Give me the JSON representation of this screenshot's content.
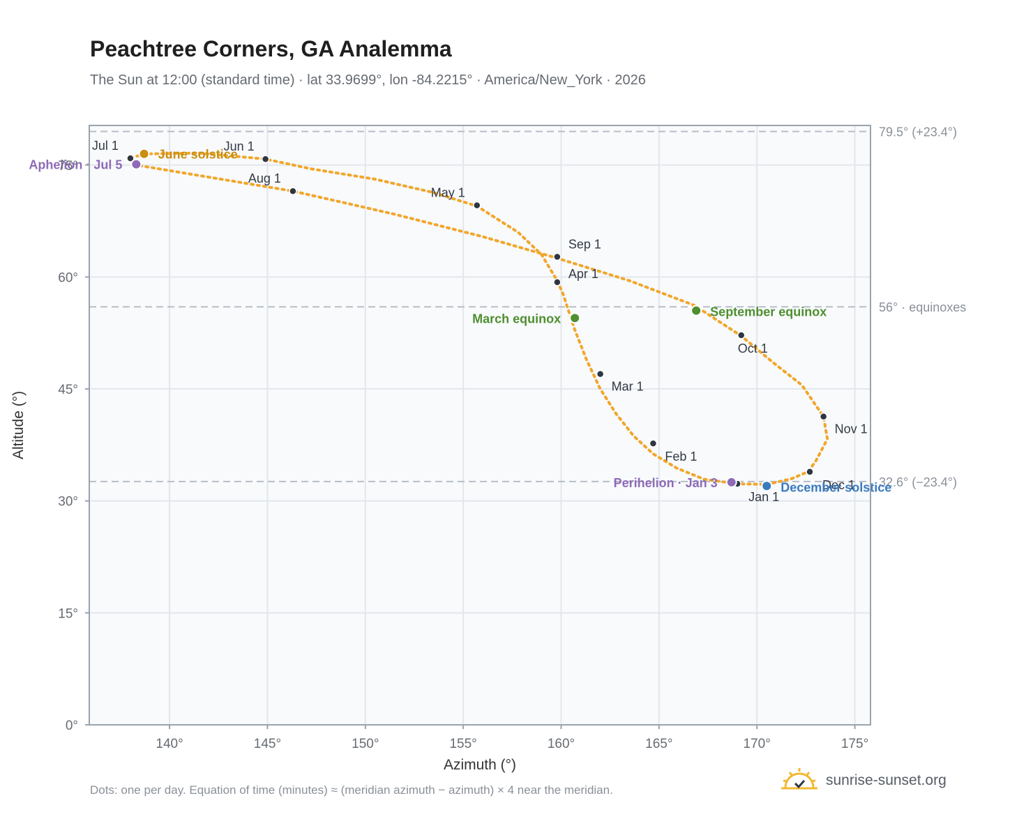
{
  "header": {
    "title": "Peachtree Corners, GA Analemma",
    "subtitle": "The Sun at 12:00 (standard time) · lat 33.9699°, lon -84.2215° · America/New_York · 2026"
  },
  "footer": {
    "note": "Dots: one per day. Equation of time (minutes) ≈ (meridian azimuth − azimuth) × 4 near the meridian.",
    "brand": "sunrise-sunset.org"
  },
  "colors": {
    "curve": "#f2a62a",
    "month_dot": "#2f3640",
    "solstice_june": "#c98e12",
    "solstice_december": "#3a7abf",
    "equinox": "#4f8f2f",
    "apsis": "#8e6bb8",
    "ref_line": "#b8bec6",
    "plot_bg": "#f8fafc",
    "grid": "#e3e7ec",
    "frame": "#9aa3ad"
  },
  "chart_data": {
    "type": "scatter",
    "xlabel": "Azimuth (°)",
    "ylabel": "Altitude (°)",
    "xlim": [
      135.9,
      175.8
    ],
    "ylim": [
      0,
      80.3
    ],
    "x_ticks": [
      140,
      145,
      150,
      155,
      160,
      165,
      170,
      175
    ],
    "x_tick_labels": [
      "140°",
      "145°",
      "150°",
      "155°",
      "160°",
      "165°",
      "170°",
      "175°"
    ],
    "y_ticks": [
      0,
      15,
      30,
      45,
      60,
      75
    ],
    "y_tick_labels": [
      "0°",
      "15°",
      "30°",
      "45°",
      "60°",
      "75°"
    ],
    "grid": true,
    "series": [
      {
        "points": [
          [
            169.0,
            32.3
          ],
          [
            167.3,
            32.9
          ],
          [
            165.9,
            34.4
          ],
          [
            164.7,
            36.3
          ],
          [
            163.7,
            38.7
          ],
          [
            162.8,
            41.7
          ],
          [
            162.0,
            45.0
          ],
          [
            161.3,
            48.9
          ],
          [
            160.7,
            52.9
          ],
          [
            160.1,
            57.7
          ],
          [
            159.8,
            59.5
          ],
          [
            159.0,
            63.0
          ],
          [
            157.8,
            66.0
          ],
          [
            155.7,
            69.5
          ],
          [
            153.5,
            71.3
          ],
          [
            150.5,
            73.1
          ],
          [
            147.2,
            74.5
          ],
          [
            144.9,
            75.8
          ],
          [
            141.5,
            76.6
          ],
          [
            139.0,
            76.5
          ],
          [
            137.9,
            76.0
          ],
          [
            138.3,
            75.0
          ],
          [
            141.5,
            73.6
          ],
          [
            146.3,
            71.5
          ],
          [
            151.5,
            68.4
          ],
          [
            156.0,
            65.4
          ],
          [
            159.7,
            62.6
          ],
          [
            163.5,
            59.5
          ],
          [
            166.8,
            56.2
          ],
          [
            169.2,
            52.1
          ],
          [
            170.8,
            48.6
          ],
          [
            172.3,
            45.5
          ],
          [
            173.4,
            41.3
          ],
          [
            173.6,
            38.3
          ],
          [
            173.0,
            35.3
          ],
          [
            172.6,
            33.9
          ],
          [
            171.8,
            33.0
          ],
          [
            170.5,
            32.2
          ],
          [
            169.0,
            32.3
          ]
        ]
      }
    ],
    "month_markers": [
      {
        "label": "Jan 1",
        "x": 169.0,
        "y": 32.3
      },
      {
        "label": "Feb 1",
        "x": 164.7,
        "y": 37.7
      },
      {
        "label": "Mar 1",
        "x": 162.0,
        "y": 47.0
      },
      {
        "label": "Apr 1",
        "x": 159.8,
        "y": 59.3
      },
      {
        "label": "May 1",
        "x": 155.7,
        "y": 69.6
      },
      {
        "label": "Jun 1",
        "x": 144.9,
        "y": 75.8
      },
      {
        "label": "Jul 1",
        "x": 138.0,
        "y": 75.9
      },
      {
        "label": "Aug 1",
        "x": 146.3,
        "y": 71.5
      },
      {
        "label": "Sep 1",
        "x": 159.8,
        "y": 62.7
      },
      {
        "label": "Oct 1",
        "x": 169.2,
        "y": 52.2
      },
      {
        "label": "Nov 1",
        "x": 173.4,
        "y": 41.3
      },
      {
        "label": "Dec 1",
        "x": 172.7,
        "y": 33.9
      }
    ],
    "events": [
      {
        "label": "June solstice",
        "x": 138.7,
        "y": 76.5,
        "color_key": "solstice_june"
      },
      {
        "label": "Aphelion · Jul 5",
        "x": 138.3,
        "y": 75.1,
        "color_key": "apsis"
      },
      {
        "label": "March equinox",
        "x": 160.7,
        "y": 54.5,
        "color_key": "equinox"
      },
      {
        "label": "September equinox",
        "x": 166.9,
        "y": 55.5,
        "color_key": "equinox"
      },
      {
        "label": "Perihelion · Jan 3",
        "x": 168.7,
        "y": 32.5,
        "color_key": "apsis"
      },
      {
        "label": "December solstice",
        "x": 170.5,
        "y": 32.0,
        "color_key": "solstice_december"
      }
    ],
    "reference_lines": [
      {
        "y": 79.5,
        "label": "79.5° (+23.4°)"
      },
      {
        "y": 56.0,
        "label": "56° · equinoxes"
      },
      {
        "y": 32.6,
        "label": "32.6° (−23.4°)"
      }
    ]
  }
}
